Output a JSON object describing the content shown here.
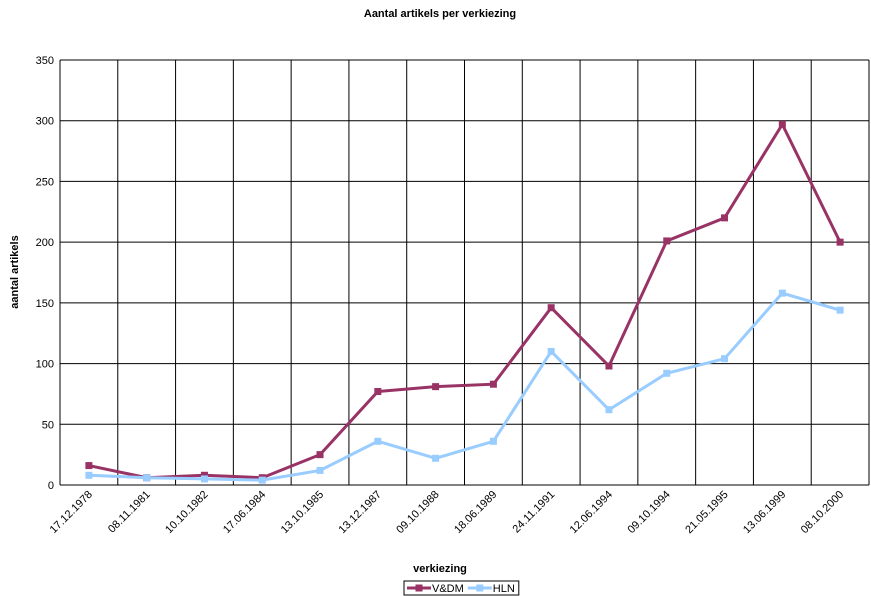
{
  "chart_data": {
    "type": "line",
    "title": "Aantal artikels per verkiezing",
    "x_label": "verkiezing",
    "y_label": "aantal artikels",
    "categories": [
      "17.12.1978",
      "08.11.1981",
      "10.10.1982",
      "17.06.1984",
      "13.10.1985",
      "13.12.1987",
      "09.10.1988",
      "18.06.1989",
      "24.11.1991",
      "12.06.1994",
      "09.10.1994",
      "21.05.1995",
      "13.06.1999",
      "08.10.2000"
    ],
    "series": [
      {
        "name": "V&DM",
        "color": "#993366",
        "values": [
          16,
          6,
          8,
          6,
          25,
          77,
          81,
          83,
          146,
          98,
          201,
          220,
          297,
          200
        ]
      },
      {
        "name": "HLN",
        "color": "#99ccff",
        "values": [
          8,
          6,
          5,
          4,
          12,
          36,
          22,
          36,
          110,
          62,
          92,
          104,
          158,
          144
        ]
      }
    ],
    "ylim": [
      0,
      350
    ],
    "yticks": [
      0,
      50,
      100,
      150,
      200,
      250,
      300,
      350
    ],
    "grid": true,
    "legend": "bottom"
  }
}
